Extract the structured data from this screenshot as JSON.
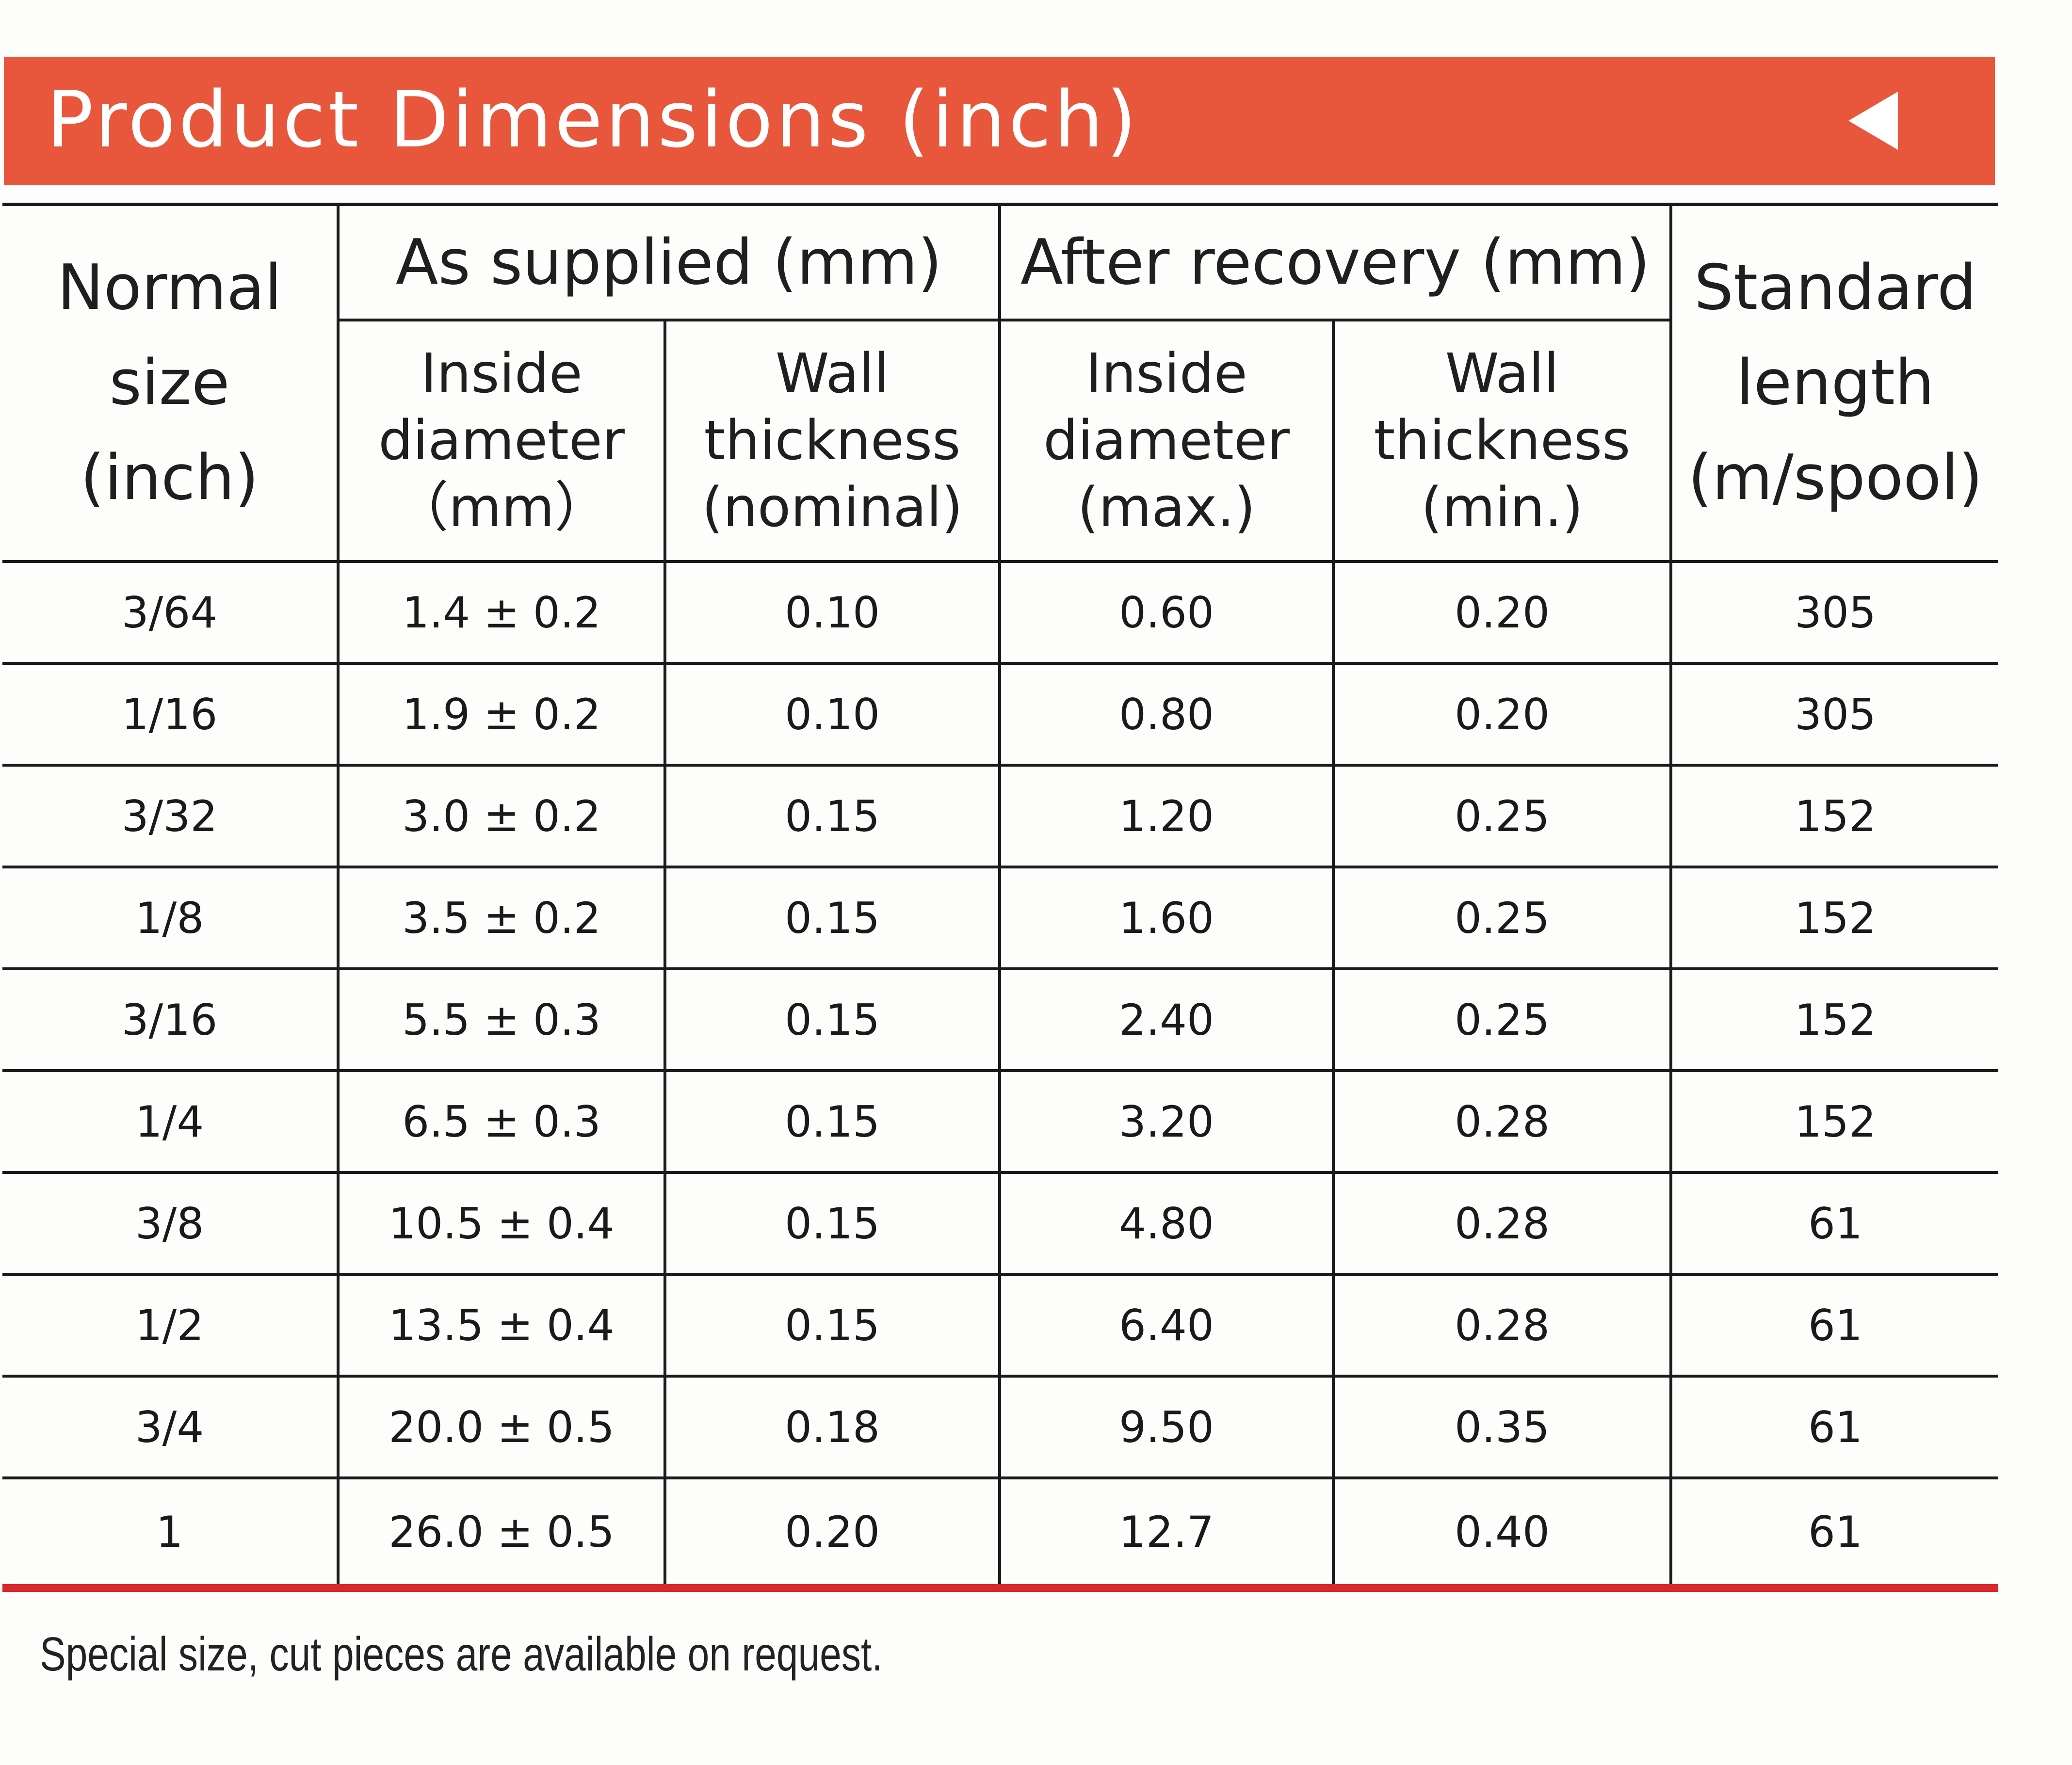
{
  "banner": {
    "title": "Product Dimensions (inch)",
    "arrow_icon": "triangle-left-icon",
    "color": "#e8563b"
  },
  "table": {
    "header": {
      "normal_size": [
        "Normal",
        "size",
        "(inch)"
      ],
      "as_supplied": "As supplied (mm)",
      "after_recovery": "After recovery (mm)",
      "standard_length": [
        "Standard",
        "length",
        "(m/spool)"
      ],
      "inside_diameter_supplied": [
        "Inside",
        "diameter",
        "（mm）"
      ],
      "wall_thickness_nominal": [
        "Wall",
        "thickness",
        "(nominal)"
      ],
      "inside_diameter_max": [
        "Inside",
        "diameter",
        "(max.)"
      ],
      "wall_thickness_min": [
        "Wall",
        "thickness",
        "(min.)"
      ]
    },
    "rows": [
      [
        "3/64",
        "1.4 ± 0.2",
        "0.10",
        "0.60",
        "0.20",
        "305"
      ],
      [
        "1/16",
        "1.9 ± 0.2",
        "0.10",
        "0.80",
        "0.20",
        "305"
      ],
      [
        "3/32",
        "3.0 ± 0.2",
        "0.15",
        "1.20",
        "0.25",
        "152"
      ],
      [
        "1/8",
        "3.5 ± 0.2",
        "0.15",
        "1.60",
        "0.25",
        "152"
      ],
      [
        "3/16",
        "5.5 ± 0.3",
        "0.15",
        "2.40",
        "0.25",
        "152"
      ],
      [
        "1/4",
        "6.5 ± 0.3",
        "0.15",
        "3.20",
        "0.28",
        "152"
      ],
      [
        "3/8",
        "10.5 ± 0.4",
        "0.15",
        "4.80",
        "0.28",
        "61"
      ],
      [
        "1/2",
        "13.5 ± 0.4",
        "0.15",
        "6.40",
        "0.28",
        "61"
      ],
      [
        "3/4",
        "20.0 ± 0.5",
        "0.18",
        "9.50",
        "0.35",
        "61"
      ],
      [
        "1",
        "26.0 ± 0.5",
        "0.20",
        "12.7",
        "0.40",
        "61"
      ]
    ]
  },
  "footer": {
    "note": "Special size, cut pieces are available on request."
  }
}
